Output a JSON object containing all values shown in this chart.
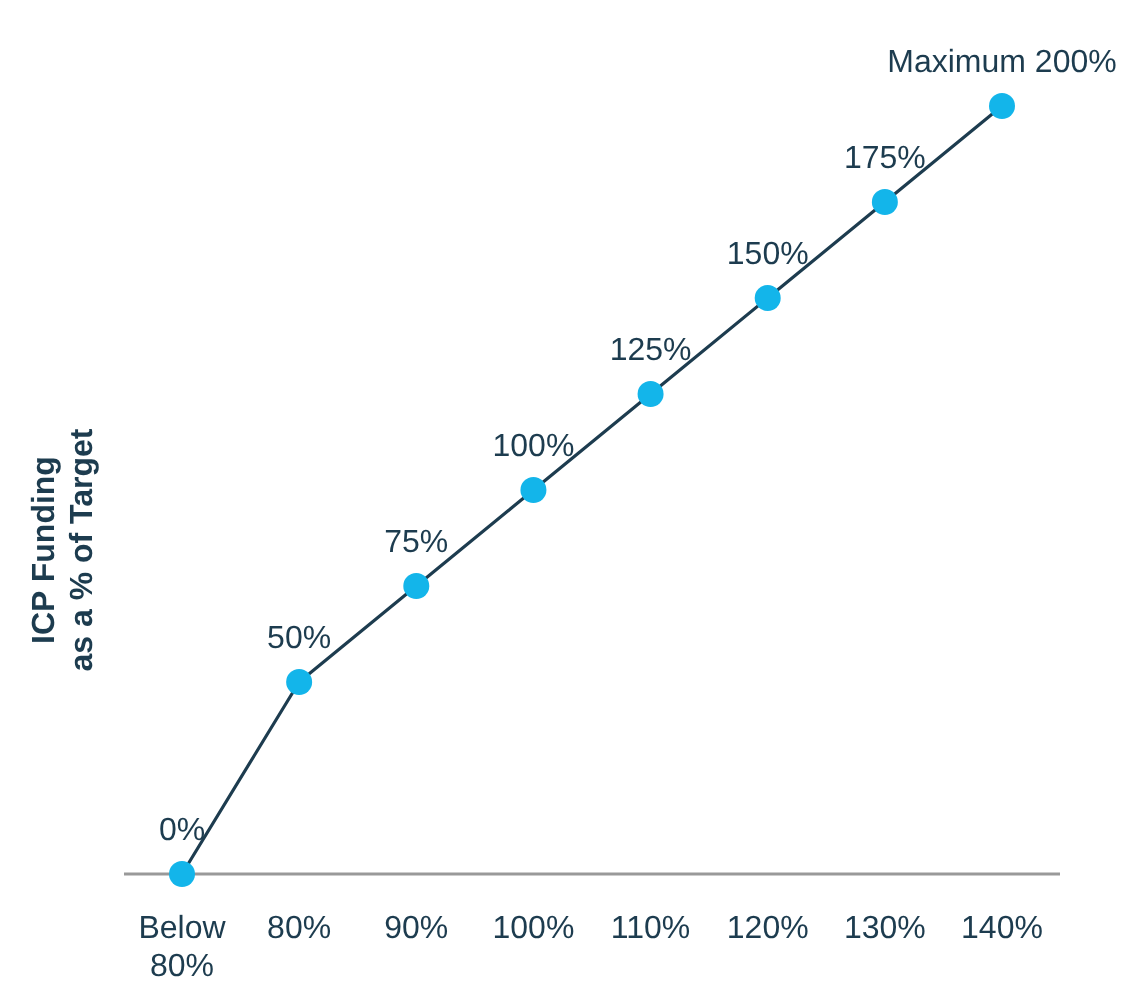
{
  "chart_data": {
    "type": "line",
    "ylabel": "ICP Funding\nas a % of Target",
    "categories": [
      "Below 80%",
      "80%",
      "90%",
      "100%",
      "110%",
      "120%",
      "130%",
      "140%"
    ],
    "series": [
      {
        "color": "#13b5ea",
        "values": [
          0,
          50,
          75,
          100,
          125,
          150,
          175,
          200
        ],
        "value_labels": [
          "0%",
          "50%",
          "75%",
          "100%",
          "125%",
          "150%",
          "175%",
          "Maximum 200%"
        ]
      }
    ],
    "marker": "circle",
    "line_style": "solid"
  }
}
